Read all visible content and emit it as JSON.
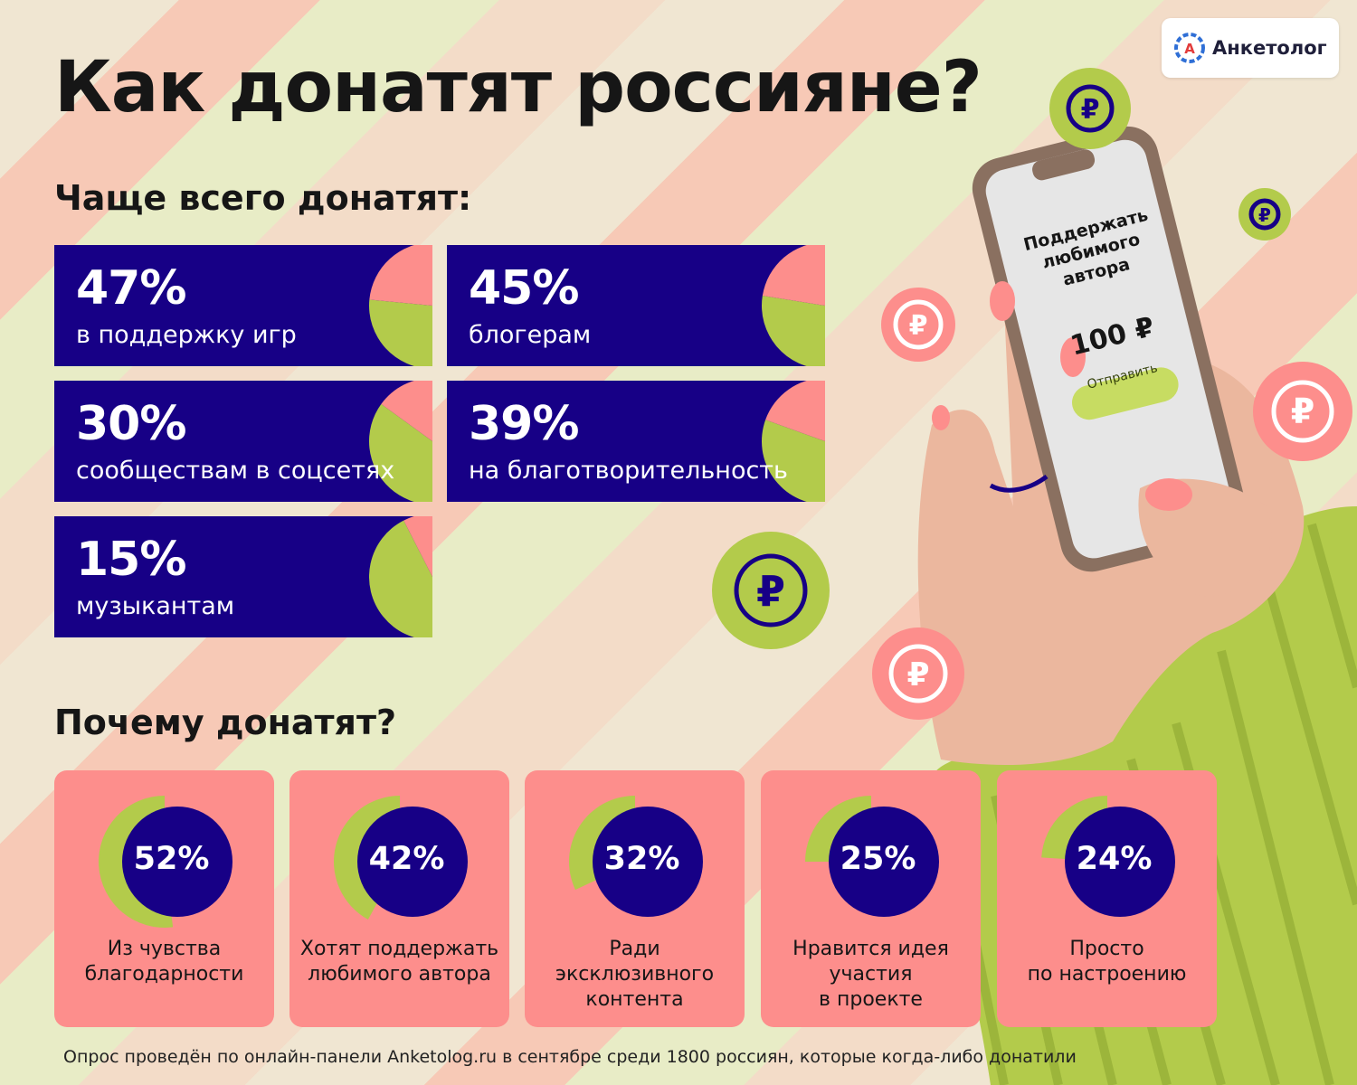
{
  "title": "Как донатят россияне?",
  "logo": {
    "text": "Анкетолог",
    "mark": "А"
  },
  "section1": {
    "heading": "Чаще всего донатят:"
  },
  "section2": {
    "heading": "Почему донатят?"
  },
  "phone": {
    "screen_text": "Поддержать любимого автора",
    "amount": "100 ₽",
    "button": "Отправить"
  },
  "colors": {
    "navy": "#170086",
    "pink": "#fd8e8c",
    "green": "#b3cb4b",
    "skin": "#ebb79e"
  },
  "chart_data": [
    {
      "type": "bar",
      "categories": [
        "в поддержку игр",
        "блогерам",
        "сообществам в соцсетях",
        "на благотворительность",
        "музыкантам"
      ],
      "values": [
        47,
        45,
        30,
        39,
        15
      ],
      "labels": [
        "47%",
        "45%",
        "30%",
        "39%",
        "15%"
      ],
      "unit": "%"
    },
    {
      "type": "pie",
      "categories": [
        "Из чувства\nблагодарности",
        "Хотят поддержать\nлюбимого автора",
        "Ради\nэксклюзивного\nконтента",
        "Нравится идея\nучастия\nв проекте",
        "Просто\nпо настроению"
      ],
      "values": [
        52,
        42,
        32,
        25,
        24
      ],
      "labels": [
        "52%",
        "42%",
        "32%",
        "25%",
        "24%"
      ],
      "unit": "%"
    }
  ],
  "footnote": "Опрос проведён по онлайн-панели Anketolog.ru в сентябре среди 1800 россиян, которые когда-либо донатили"
}
